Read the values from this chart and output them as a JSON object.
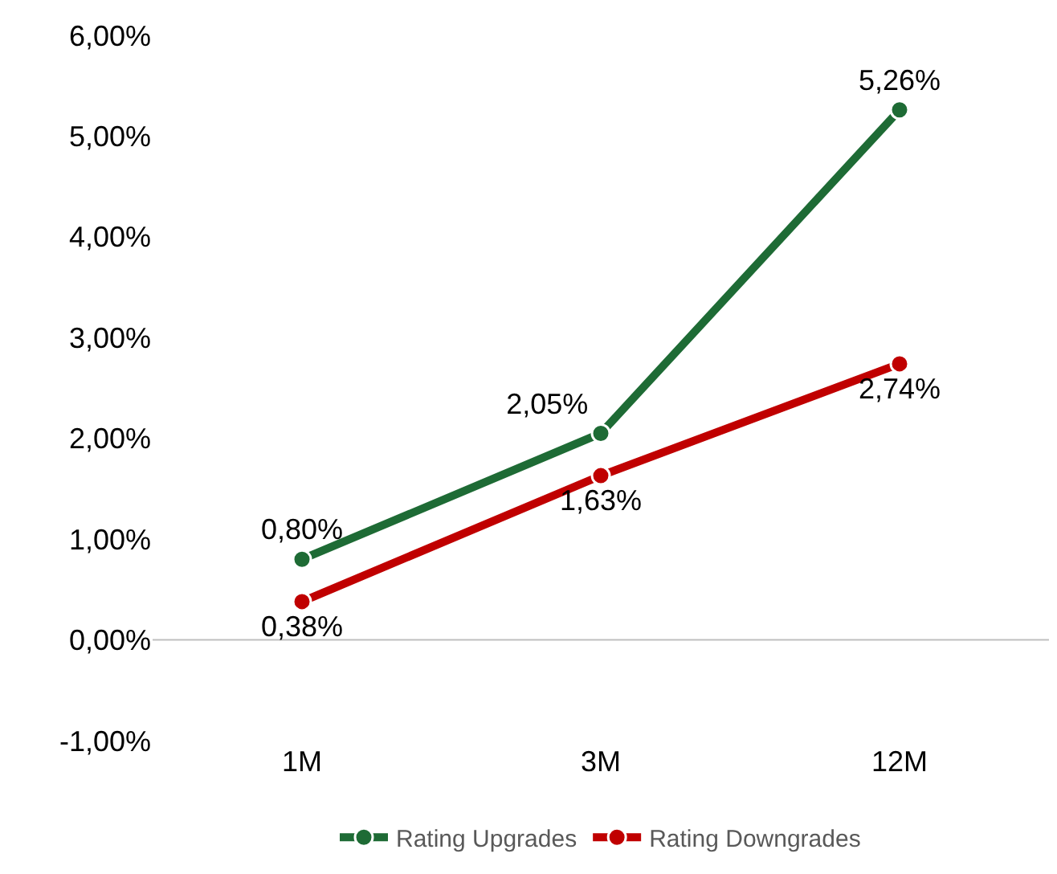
{
  "chart_data": {
    "type": "line",
    "categories": [
      "1M",
      "3M",
      "12M"
    ],
    "series": [
      {
        "name": "Rating Upgrades",
        "color": "#1e6b35",
        "values": [
          0.8,
          2.05,
          5.26
        ],
        "value_labels": [
          "0,80%",
          "2,05%",
          "5,26%"
        ]
      },
      {
        "name": "Rating Downgrades",
        "color": "#c00000",
        "values": [
          0.38,
          1.63,
          2.74
        ],
        "value_labels": [
          "0,38%",
          "1,63%",
          "2,74%"
        ]
      }
    ],
    "ylim": [
      -1,
      6
    ],
    "yticks": [
      {
        "value": -1,
        "label": "-1,00%"
      },
      {
        "value": 0,
        "label": "0,00%"
      },
      {
        "value": 1,
        "label": "1,00%"
      },
      {
        "value": 2,
        "label": "2,00%"
      },
      {
        "value": 3,
        "label": "3,00%"
      },
      {
        "value": 4,
        "label": "4,00%"
      },
      {
        "value": 5,
        "label": "5,00%"
      },
      {
        "value": 6,
        "label": "6,00%"
      }
    ],
    "ref_lines": [
      {
        "axis": "y",
        "value": 0,
        "color": "#bfbfbf"
      }
    ],
    "grid": false,
    "legend": "bottom",
    "marker": "circle",
    "line_style": "solid"
  }
}
